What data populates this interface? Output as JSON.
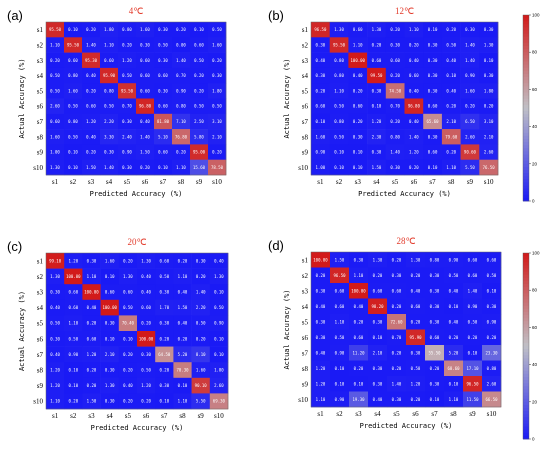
{
  "colors": {
    "scale_low": "#1a1af5",
    "scale_mid": "#c0c0c6",
    "scale_high": "#d21a1a",
    "title_color": "#e23a2a"
  },
  "chart_data": [
    {
      "type": "heatmap",
      "panel_label": "(a)",
      "title": "4℃",
      "xlabel": "Predicted Accuracy (%)",
      "ylabel": "Actual Accuracy (%)",
      "x_categories": [
        "s1",
        "s2",
        "s3",
        "s4",
        "s5",
        "s6",
        "s7",
        "s8",
        "s9",
        "s10"
      ],
      "y_categories": [
        "s1",
        "s2",
        "s3",
        "s4",
        "s5",
        "s6",
        "s7",
        "s8",
        "s9",
        "s10"
      ],
      "colorbar_ticks": [
        "100",
        "80",
        "60",
        "40",
        "20",
        "0"
      ],
      "zlim": [
        0,
        100
      ],
      "matrix": [
        [
          95.5,
          0.1,
          0.2,
          1.8,
          0.8,
          1.6,
          0.3,
          0.2,
          0.1,
          0.5
        ],
        [
          1.1,
          95.5,
          1.4,
          1.1,
          0.2,
          0.3,
          0.5,
          0.0,
          0.6,
          1.6
        ],
        [
          0.2,
          0.6,
          95.3,
          0.6,
          1.2,
          0.6,
          0.3,
          1.4,
          0.5,
          0.2
        ],
        [
          0.5,
          0.8,
          0.4,
          95.9,
          0.5,
          0.6,
          0.6,
          0.7,
          0.2,
          0.3
        ],
        [
          0.5,
          1.6,
          0.2,
          0.8,
          93.5,
          0.6,
          0.3,
          0.9,
          0.2,
          1.8
        ],
        [
          2.6,
          0.5,
          0.6,
          0.5,
          0.7,
          96.8,
          0.6,
          0.8,
          0.5,
          0.5
        ],
        [
          0.6,
          0.8,
          1.2,
          2.2,
          0.3,
          0.4,
          81.8,
          7.1,
          2.5,
          3.1
        ],
        [
          1.6,
          0.5,
          0.4,
          3.3,
          2.4,
          1.4,
          5.1,
          76.8,
          5.8,
          2.1
        ],
        [
          1.0,
          0.1,
          0.2,
          0.3,
          0.9,
          1.5,
          0.6,
          0.2,
          95.0,
          0.2
        ],
        [
          1.3,
          0.1,
          1.5,
          1.4,
          0.3,
          0.2,
          0.1,
          1.1,
          15.6,
          78.5
        ]
      ]
    },
    {
      "type": "heatmap",
      "panel_label": "(b)",
      "title": "12℃",
      "xlabel": "Predicted Accuracy (%)",
      "ylabel": "Actual Accuracy (%)",
      "x_categories": [
        "s1",
        "s2",
        "s3",
        "s4",
        "s5",
        "s6",
        "s7",
        "s8",
        "s9",
        "s10"
      ],
      "y_categories": [
        "s1",
        "s2",
        "s3",
        "s4",
        "s5",
        "s6",
        "s7",
        "s8",
        "s9",
        "s10"
      ],
      "colorbar_ticks": [
        "100",
        "80",
        "60",
        "40",
        "20",
        "0"
      ],
      "zlim": [
        0,
        100
      ],
      "matrix": [
        [
          96.5,
          1.3,
          0.6,
          1.3,
          0.2,
          1.1,
          0.1,
          0.2,
          0.3,
          0.3
        ],
        [
          0.3,
          95.5,
          1.1,
          0.2,
          0.3,
          0.2,
          0.3,
          0.5,
          1.4,
          1.3
        ],
        [
          0.4,
          0.8,
          100.0,
          0.6,
          0.6,
          0.4,
          0.3,
          0.4,
          1.4,
          0.1
        ],
        [
          0.3,
          0.8,
          0.4,
          99.5,
          0.2,
          0.6,
          0.3,
          0.1,
          0.9,
          0.3
        ],
        [
          0.2,
          1.1,
          0.2,
          0.3,
          74.5,
          0.4,
          0.3,
          0.4,
          1.6,
          1.8
        ],
        [
          0.6,
          0.5,
          0.6,
          0.1,
          0.7,
          96.8,
          0.6,
          0.2,
          0.2,
          0.2
        ],
        [
          0.1,
          0.8,
          0.2,
          1.2,
          0.2,
          0.4,
          65.6,
          2.1,
          6.5,
          3.1
        ],
        [
          1.6,
          0.5,
          0.3,
          2.3,
          0.8,
          1.4,
          0.3,
          79.6,
          2.6,
          2.1
        ],
        [
          0.9,
          0.1,
          0.1,
          0.3,
          1.4,
          1.2,
          0.6,
          0.2,
          90.6,
          2.6
        ],
        [
          1.0,
          0.1,
          0.1,
          1.5,
          0.3,
          0.2,
          0.1,
          1.1,
          5.5,
          76.5
        ]
      ]
    },
    {
      "type": "heatmap",
      "panel_label": "(c)",
      "title": "20℃",
      "xlabel": "Predicted Accuracy (%)",
      "ylabel": "Actual Accuracy (%)",
      "x_categories": [
        "s1",
        "s2",
        "s3",
        "s4",
        "s5",
        "s6",
        "s7",
        "s8",
        "s9",
        "s10"
      ],
      "y_categories": [
        "s1",
        "s2",
        "s3",
        "s4",
        "s5",
        "s6",
        "s7",
        "s8",
        "s9",
        "s10"
      ],
      "colorbar_ticks": [
        "100",
        "80",
        "60",
        "40",
        "20",
        "0"
      ],
      "zlim": [
        0,
        100
      ],
      "matrix": [
        [
          99.1,
          1.2,
          0.3,
          1.6,
          0.2,
          1.3,
          0.6,
          0.2,
          0.3,
          0.4
        ],
        [
          1.3,
          100.0,
          1.1,
          0.1,
          1.3,
          0.4,
          0.5,
          1.1,
          0.2,
          1.3
        ],
        [
          0.3,
          0.6,
          100.0,
          0.6,
          0.6,
          0.4,
          0.3,
          0.4,
          1.4,
          0.1
        ],
        [
          0.4,
          0.6,
          0.4,
          100.0,
          0.5,
          0.6,
          1.7,
          1.5,
          2.2,
          0.5
        ],
        [
          0.5,
          1.1,
          0.2,
          0.3,
          70.4,
          0.2,
          0.3,
          0.4,
          0.5,
          0.9
        ],
        [
          0.3,
          0.5,
          0.6,
          0.1,
          0.1,
          100.0,
          0.2,
          0.2,
          0.2,
          0.1
        ],
        [
          0.4,
          0.9,
          1.2,
          2.1,
          0.2,
          0.3,
          64.5,
          5.2,
          8.1,
          0.1
        ],
        [
          1.2,
          0.1,
          0.2,
          0.3,
          0.2,
          0.5,
          0.2,
          70.3,
          1.6,
          1.8
        ],
        [
          1.2,
          0.1,
          0.2,
          1.3,
          0.4,
          1.2,
          0.3,
          0.1,
          90.1,
          2.6
        ],
        [
          1.1,
          0.2,
          1.5,
          0.3,
          0.2,
          0.2,
          0.1,
          1.1,
          5.5,
          69.3
        ]
      ]
    },
    {
      "type": "heatmap",
      "panel_label": "(d)",
      "title": "28℃",
      "xlabel": "Predicted Accuracy (%)",
      "ylabel": "Actual Accuracy (%)",
      "x_categories": [
        "s1",
        "s2",
        "s3",
        "s4",
        "s5",
        "s6",
        "s7",
        "s8",
        "s9",
        "s10"
      ],
      "y_categories": [
        "s1",
        "s2",
        "s3",
        "s4",
        "s5",
        "s6",
        "s7",
        "s8",
        "s9",
        "s10"
      ],
      "colorbar_ticks": [
        "100",
        "80",
        "60",
        "40",
        "20",
        "0"
      ],
      "zlim": [
        0,
        100
      ],
      "matrix": [
        [
          100.0,
          1.5,
          0.3,
          1.3,
          0.2,
          1.3,
          0.8,
          0.9,
          0.6,
          0.6
        ],
        [
          0.2,
          96.5,
          1.1,
          0.2,
          0.3,
          0.2,
          0.3,
          0.5,
          0.6,
          0.5
        ],
        [
          0.3,
          0.6,
          100.0,
          0.6,
          0.6,
          0.4,
          0.3,
          0.4,
          1.4,
          0.1
        ],
        [
          0.4,
          0.6,
          0.4,
          98.2,
          0.2,
          0.6,
          0.3,
          0.1,
          0.9,
          0.3
        ],
        [
          0.3,
          1.1,
          0.2,
          0.3,
          72.6,
          0.2,
          0.3,
          0.4,
          0.5,
          0.9
        ],
        [
          0.3,
          0.5,
          0.6,
          0.1,
          0.7,
          95.9,
          0.6,
          0.2,
          0.2,
          0.2
        ],
        [
          0.4,
          0.9,
          11.2,
          2.1,
          0.2,
          0.3,
          55.5,
          5.2,
          0.1,
          23.3
        ],
        [
          1.2,
          0.1,
          0.2,
          0.3,
          0.2,
          0.5,
          0.2,
          68.6,
          17.1,
          0.8
        ],
        [
          1.2,
          0.1,
          0.1,
          0.3,
          1.4,
          1.2,
          0.3,
          0.1,
          96.5,
          2.6
        ],
        [
          1.1,
          0.9,
          19.3,
          0.4,
          0.3,
          0.2,
          0.1,
          1.1,
          11.5,
          66.5
        ]
      ]
    }
  ]
}
